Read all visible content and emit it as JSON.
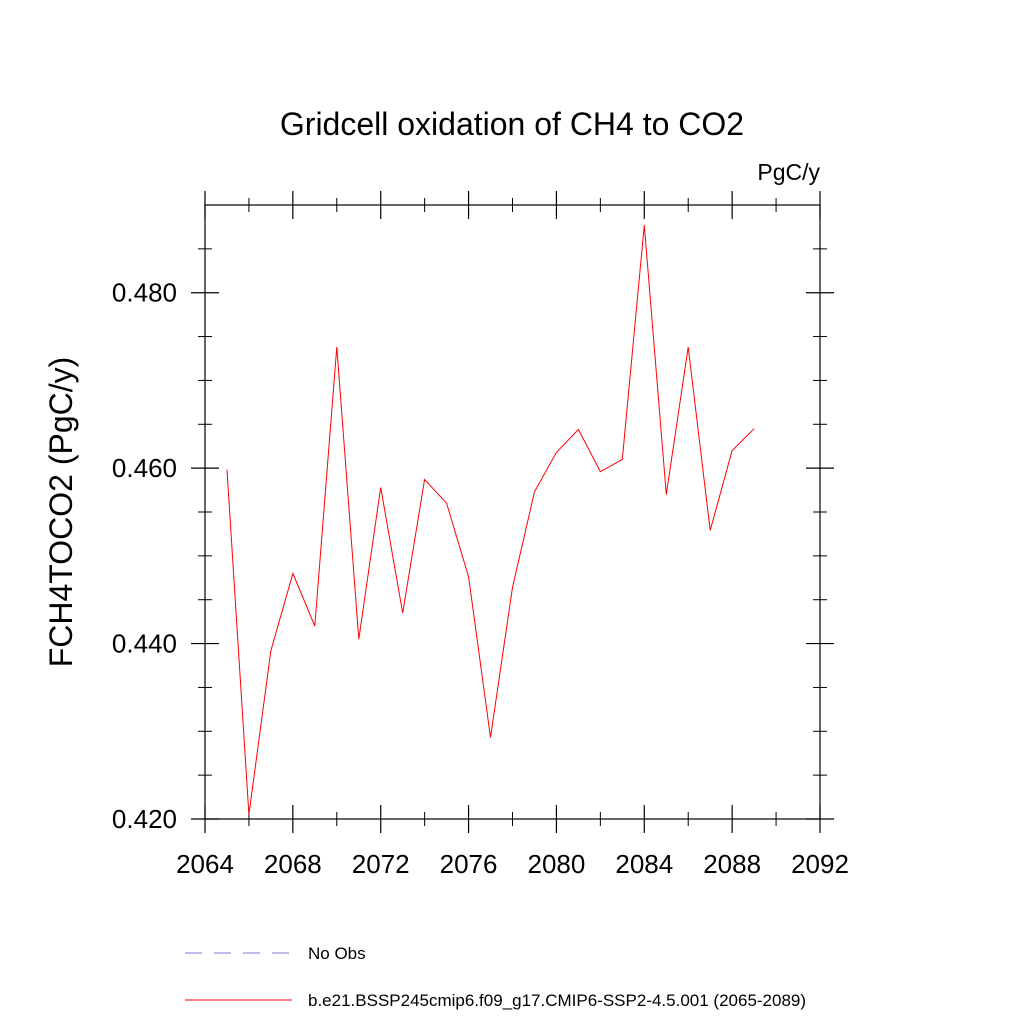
{
  "chart_data": {
    "type": "line",
    "title": "Gridcell oxidation of CH4 to CO2",
    "units_label": "PgC/y",
    "ylabel": "FCH4TOCO2  (PgC/y)",
    "xlabel": "",
    "xlim": [
      2064,
      2092
    ],
    "ylim": [
      0.42,
      0.49
    ],
    "x_ticks": [
      2064,
      2068,
      2072,
      2076,
      2080,
      2084,
      2088,
      2092
    ],
    "x_tick_labels": [
      "2064",
      "2068",
      "2072",
      "2076",
      "2080",
      "2084",
      "2088",
      "2092"
    ],
    "y_ticks": [
      0.42,
      0.44,
      0.46,
      0.48
    ],
    "y_tick_labels": [
      "0.420",
      "0.440",
      "0.460",
      "0.480"
    ],
    "grid": false,
    "legend_position": "bottom",
    "series": [
      {
        "name": "b.e21.BSSP245cmip6.f09_g17.CMIP6-SSP2-4.5.001 (2065-2089)",
        "color": "#ff0000",
        "style": "solid",
        "x": [
          2065,
          2066,
          2067,
          2068,
          2069,
          2070,
          2071,
          2072,
          2073,
          2074,
          2075,
          2076,
          2077,
          2078,
          2079,
          2080,
          2081,
          2082,
          2083,
          2084,
          2085,
          2086,
          2087,
          2088,
          2089
        ],
        "values": [
          0.4598,
          0.4205,
          0.4392,
          0.448,
          0.442,
          0.4738,
          0.4405,
          0.4578,
          0.4435,
          0.4587,
          0.456,
          0.4476,
          0.4293,
          0.4464,
          0.4573,
          0.4618,
          0.4644,
          0.4596,
          0.461,
          0.4877,
          0.457,
          0.4738,
          0.4529,
          0.462,
          0.4645
        ]
      },
      {
        "name": "No Obs",
        "color": "#7b7bd6",
        "style": "dashed",
        "x": [],
        "values": []
      }
    ]
  }
}
